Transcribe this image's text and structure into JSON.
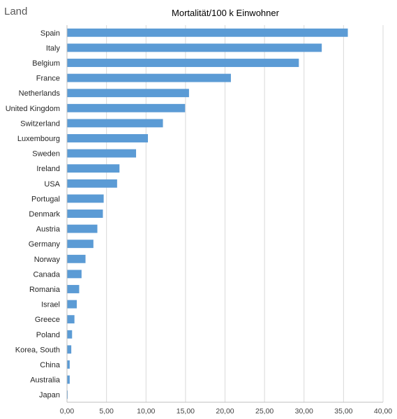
{
  "chart_data": {
    "type": "bar",
    "orientation": "horizontal",
    "title": "Mortalität/100 k Einwohner",
    "ylabel": "Land",
    "xlabel": "",
    "xlim": [
      0,
      40
    ],
    "xticks": [
      "0,00",
      "5,00",
      "10,00",
      "15,00",
      "20,00",
      "25,00",
      "30,00",
      "35,00",
      "40,00"
    ],
    "grid": true,
    "legend": "none",
    "categories": [
      "Spain",
      "Italy",
      "Belgium",
      "France",
      "Netherlands",
      "United Kingdom",
      "Switzerland",
      "Luxembourg",
      "Sweden",
      "Ireland",
      "USA",
      "Portugal",
      "Denmark",
      "Austria",
      "Germany",
      "Norway",
      "Canada",
      "Romania",
      "Israel",
      "Greece",
      "Poland",
      "Korea, South",
      "China",
      "Australia",
      "Japan"
    ],
    "values": [
      35.5,
      32.2,
      29.3,
      20.7,
      15.4,
      14.9,
      12.1,
      10.2,
      8.7,
      6.6,
      6.3,
      4.6,
      4.5,
      3.8,
      3.3,
      2.3,
      1.8,
      1.5,
      1.2,
      0.9,
      0.6,
      0.5,
      0.3,
      0.3,
      0.05
    ],
    "colors": {
      "bar": "#5b9bd5",
      "grid": "#d9d9d9"
    }
  }
}
